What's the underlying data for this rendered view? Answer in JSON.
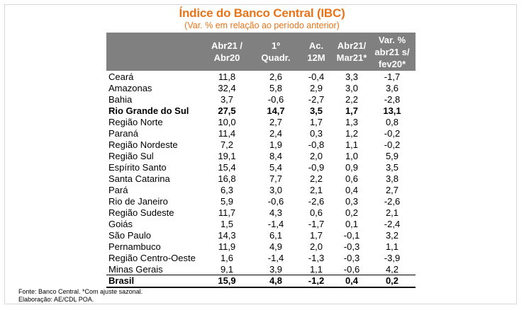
{
  "title": "Índice do Banco Central (IBC)",
  "subtitle": "(Var. % em relação ao período anterior)",
  "columns": [
    "Abr21 /\nAbr20",
    "1º\nQuadr.",
    "Ac.\n12M",
    "Abr21/\nMar21*",
    "Var. %\nabr21 s/\nfev20*"
  ],
  "rows": [
    {
      "name": "Ceará",
      "values": [
        "11,8",
        "2,6",
        "-0,4",
        "3,3",
        "-1,7"
      ],
      "bold": false
    },
    {
      "name": "Amazonas",
      "values": [
        "32,4",
        "5,8",
        "2,9",
        "3,0",
        "3,6"
      ],
      "bold": false
    },
    {
      "name": "Bahia",
      "values": [
        "3,7",
        "-0,6",
        "-2,7",
        "2,2",
        "-2,8"
      ],
      "bold": false
    },
    {
      "name": "Rio Grande do Sul",
      "values": [
        "27,5",
        "14,7",
        "3,5",
        "1,7",
        "13,1"
      ],
      "bold": true
    },
    {
      "name": "Região Norte",
      "values": [
        "10,0",
        "2,7",
        "1,7",
        "1,3",
        "0,8"
      ],
      "bold": false
    },
    {
      "name": "Paraná",
      "values": [
        "11,4",
        "2,4",
        "0,3",
        "1,2",
        "-0,2"
      ],
      "bold": false
    },
    {
      "name": "Região Nordeste",
      "values": [
        "7,2",
        "1,9",
        "-0,8",
        "1,1",
        "-0,2"
      ],
      "bold": false
    },
    {
      "name": "Região Sul",
      "values": [
        "19,1",
        "8,4",
        "2,0",
        "1,0",
        "5,9"
      ],
      "bold": false
    },
    {
      "name": "Espírito Santo",
      "values": [
        "15,4",
        "5,4",
        "-0,9",
        "0,9",
        "3,5"
      ],
      "bold": false
    },
    {
      "name": "Santa Catarina",
      "values": [
        "16,8",
        "7,7",
        "2,2",
        "0,6",
        "3,8"
      ],
      "bold": false
    },
    {
      "name": "Pará",
      "values": [
        "6,3",
        "3,0",
        "2,1",
        "0,4",
        "2,7"
      ],
      "bold": false
    },
    {
      "name": "Rio de Janeiro",
      "values": [
        "5,9",
        "-0,6",
        "-2,6",
        "0,3",
        "-2,6"
      ],
      "bold": false
    },
    {
      "name": "Região Sudeste",
      "values": [
        "11,7",
        "4,3",
        "0,6",
        "0,2",
        "2,1"
      ],
      "bold": false
    },
    {
      "name": "Goiás",
      "values": [
        "1,5",
        "-1,4",
        "-1,7",
        "0,1",
        "-2,4"
      ],
      "bold": false
    },
    {
      "name": "São Paulo",
      "values": [
        "14,3",
        "6,1",
        "1,7",
        "-0,1",
        "3,2"
      ],
      "bold": false
    },
    {
      "name": "Pernambuco",
      "values": [
        "11,9",
        "4,9",
        "2,0",
        "-0,3",
        "1,1"
      ],
      "bold": false
    },
    {
      "name": "Região Centro-Oeste",
      "values": [
        "1,6",
        "-1,4",
        "-1,3",
        "-0,3",
        "-3,9"
      ],
      "bold": false
    },
    {
      "name": "Minas Gerais",
      "values": [
        "9,1",
        "3,9",
        "1,1",
        "-0,6",
        "4,2"
      ],
      "bold": false
    },
    {
      "name": "Brasil",
      "values": [
        "15,9",
        "4,8",
        "-1,2",
        "0,4",
        "0,2"
      ],
      "bold": true
    }
  ],
  "footnotes": {
    "source": "Fonte: Banco Central. *Com ajuste sazonal.",
    "credit": "Elaboração: AE/CDL POA."
  },
  "colors": {
    "accent": "#e8741a",
    "header_bg": "#808080",
    "header_text": "#ffffff"
  }
}
